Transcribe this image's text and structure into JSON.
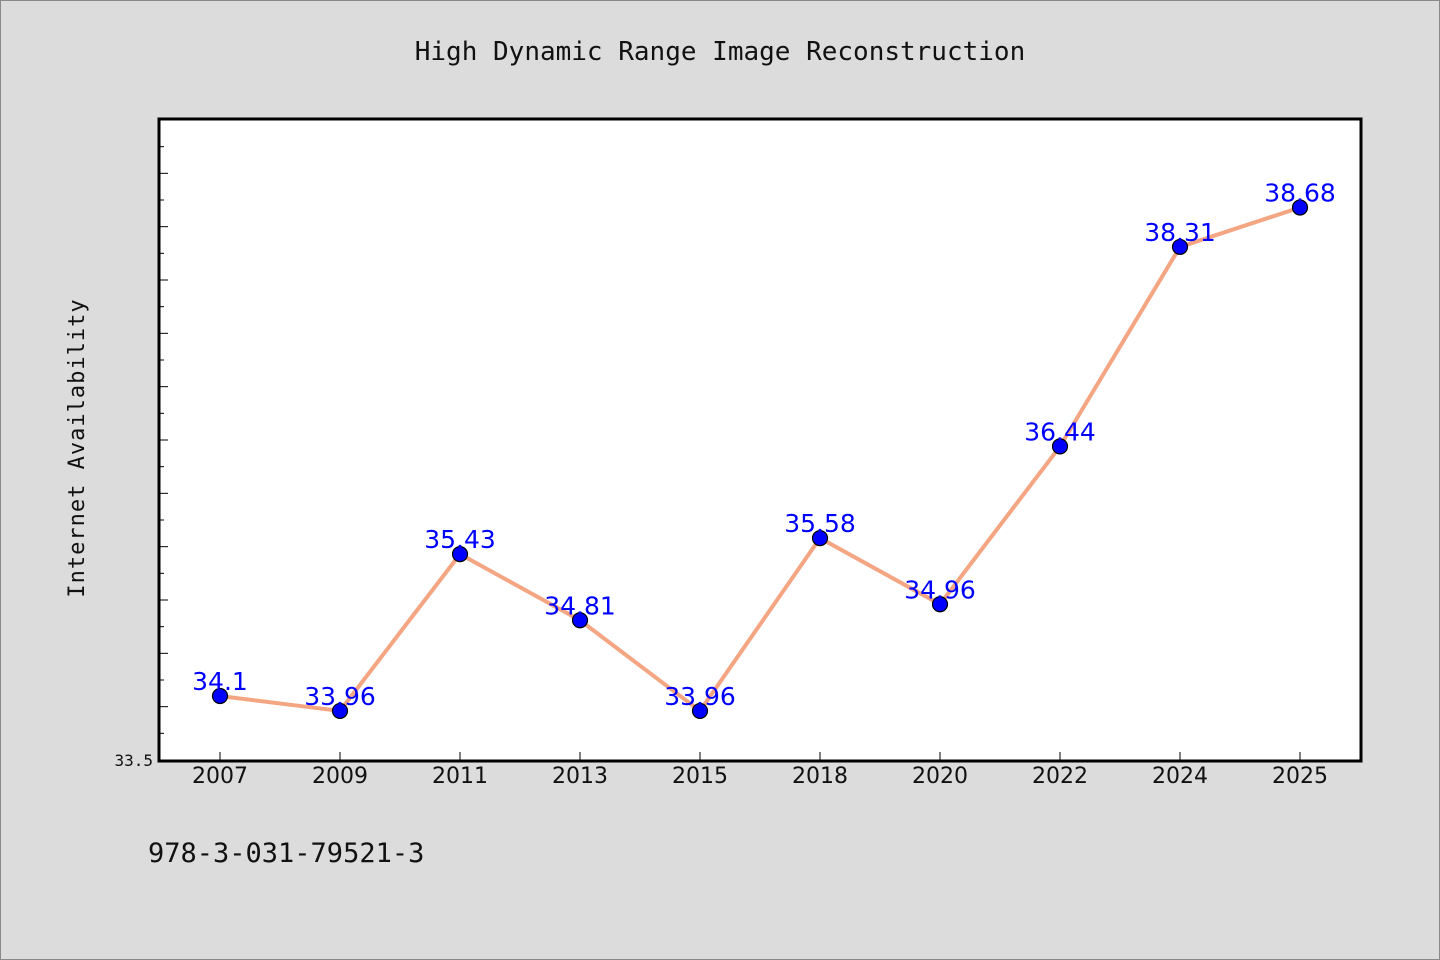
{
  "chart_data": {
    "type": "line",
    "title": "High Dynamic Range Image Reconstruction",
    "xlabel": "",
    "ylabel": "Internet Availability",
    "categories": [
      "2007",
      "2009",
      "2011",
      "2013",
      "2015",
      "2018",
      "2020",
      "2022",
      "2024",
      "2025"
    ],
    "series": [
      {
        "values": [
          34.1,
          33.96,
          35.43,
          34.81,
          33.96,
          35.58,
          34.96,
          36.44,
          38.31,
          38.68
        ]
      }
    ],
    "data_labels": [
      "34.1",
      "33.96",
      "35.43",
      "34.81",
      "33.96",
      "35.58",
      "34.96",
      "36.44",
      "38.31",
      "38.68"
    ],
    "ylim": [
      33.5,
      39.5
    ],
    "ytick_labels": [
      "33.5"
    ],
    "grid": false,
    "colors": {
      "line": "#f4a582",
      "marker": "#0000ff",
      "marker_edge": "#000000",
      "data_label": "#0000ff",
      "plot_background": "#ffffff",
      "figure_background": "#dcdcdc"
    },
    "footer": "978-3-031-79521-3"
  }
}
